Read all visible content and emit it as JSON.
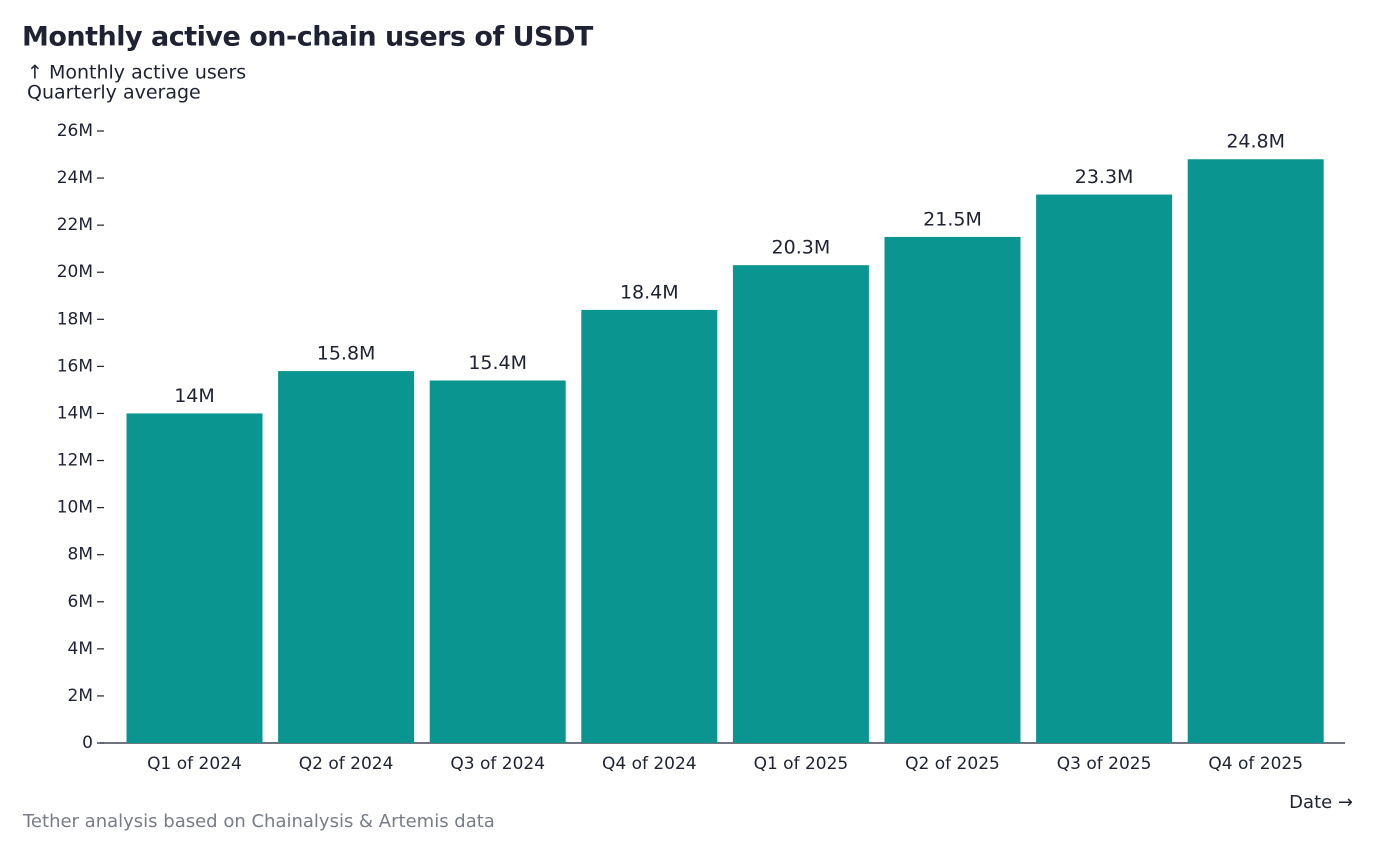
{
  "chart_data": {
    "type": "bar",
    "title": "Monthly active on-chain users of USDT",
    "ylabel": "↑ Monthly active users",
    "ylabel_note": "Quarterly average",
    "xlabel": "Date →",
    "source": "Tether analysis based on Chainalysis & Artemis data",
    "categories": [
      "Q1 of 2024",
      "Q2 of 2024",
      "Q3 of 2024",
      "Q4 of 2024",
      "Q1 of 2025",
      "Q2 of 2025",
      "Q3 of 2025",
      "Q4 of 2025"
    ],
    "values": [
      14000000,
      15800000,
      15400000,
      18400000,
      20300000,
      21500000,
      23300000,
      24800000
    ],
    "value_labels": [
      "14M",
      "15.8M",
      "15.4M",
      "18.4M",
      "20.3M",
      "21.5M",
      "23.3M",
      "24.8M"
    ],
    "color": "#0a9591",
    "ylim": [
      0,
      26000000
    ],
    "yticks": [
      0,
      {
        "value": 2000000,
        "label": "2M"
      },
      {
        "value": 4000000,
        "label": "4M"
      },
      {
        "value": 6000000,
        "label": "6M"
      },
      {
        "value": 8000000,
        "label": "8M"
      },
      {
        "value": 10000000,
        "label": "10M"
      },
      {
        "value": 12000000,
        "label": "12M"
      },
      {
        "value": 14000000,
        "label": "14M"
      },
      {
        "value": 16000000,
        "label": "16M"
      },
      {
        "value": 18000000,
        "label": "18M"
      },
      {
        "value": 20000000,
        "label": "20M"
      },
      {
        "value": 22000000,
        "label": "22M"
      },
      {
        "value": 24000000,
        "label": "24M"
      },
      {
        "value": 26000000,
        "label": "26M"
      }
    ],
    "grid": false
  }
}
